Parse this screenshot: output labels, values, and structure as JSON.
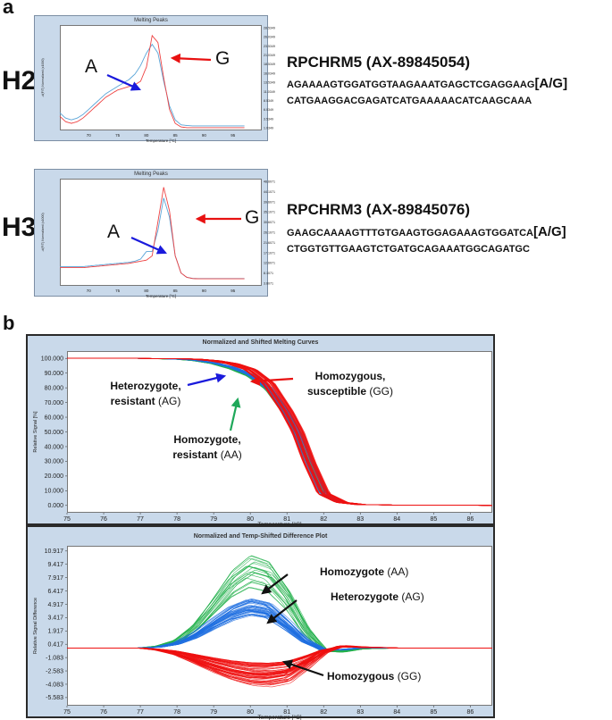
{
  "panels": {
    "a": "a",
    "b": "b"
  },
  "panel_a": {
    "H2": {
      "sample": "H2",
      "plot_title": "Melting Peaks",
      "xlabel": "Temperature [°C]",
      "ylabel": "-d(F/T) Normalized (x1000)",
      "x_ticks": [
        "70",
        "75",
        "80",
        "85",
        "90",
        "95"
      ],
      "y_ticks": [
        "28.5349",
        "26.0349",
        "23.5349",
        "21.0349",
        "18.5349",
        "16.0349",
        "13.5349",
        "11.0349",
        "8.5349",
        "6.0349",
        "3.5349",
        "1.0349"
      ],
      "snp_id": "RPCHRM5 (AX-89845054)",
      "seq_line1": "AGAAAAGTGGATGGTAAGAAATGAGCTCGAGGAAG",
      "allele": "[A/G]",
      "seq_line2": "CATGAAGGACGAGATCATGAAAAACATCAAGCAAA",
      "label_A": "A",
      "label_G": "G"
    },
    "H3": {
      "sample": "H3",
      "plot_title": "Melting Peaks",
      "xlabel": "Temperature [°C]",
      "ylabel": "-d(F/T) Normalized (x1000)",
      "x_ticks": [
        "70",
        "75",
        "80",
        "85",
        "90",
        "95"
      ],
      "y_ticks": [
        "48.6071",
        "44.1071",
        "39.6071",
        "35.1071",
        "30.6071",
        "26.1071",
        "21.6071",
        "17.1071",
        "12.6071",
        "8.1071",
        "3.6071"
      ],
      "snp_id": "RPCHRM3 (AX-89845076)",
      "seq_line1": "GAAGCAAAAGTTTGTGAAGTGGAGAAAGTGGATCA",
      "allele": "[A/G]",
      "seq_line2": "CTGGTGTTGAAGTCTGATGCAGAAATGGCAGATGC",
      "label_A": "A",
      "label_G": "G"
    }
  },
  "panel_b": {
    "top": {
      "title": "Normalized and Shifted Melting Curves",
      "xlabel": "Temperature [°C]",
      "ylabel": "Relative Signal [%]",
      "ann_het_1": "Heterozygote,",
      "ann_het_2": "resistant",
      "ann_het_g": "(AG)",
      "ann_homr_1": "Homozygote,",
      "ann_homr_2": "resistant",
      "ann_homr_g": "(AA)",
      "ann_homs_1": "Homozygous,",
      "ann_homs_2": "susceptible",
      "ann_homs_g": "(GG)"
    },
    "bottom": {
      "title": "Normalized and Temp-Shifted Difference Plot",
      "xlabel": "Temperature [°C]",
      "ylabel": "Relative Signal Difference",
      "ann_aa": "Homozygote",
      "ann_aa_g": "(AA)",
      "ann_ag": "Heterozygote",
      "ann_ag_g": "(AG)",
      "ann_gg": "Homozygous",
      "ann_gg_g": "(GG)"
    }
  },
  "colors": {
    "AA": "#22b04b",
    "AG": "#1e6fe0",
    "GG": "#ee1111",
    "arrow_A": "#1a1adc",
    "arrow_G": "#e81111",
    "arrow_green": "#1fa85a",
    "arrow_black": "#111111"
  },
  "chart_data": [
    {
      "type": "line",
      "title": "Melting Peaks",
      "xlabel": "Temperature [°C]",
      "ylabel": "-d(F/T) Normalized (x1000)",
      "xlim": [
        65,
        100
      ],
      "ylim": [
        0,
        30
      ],
      "x_ticks": [
        70,
        75,
        80,
        85,
        90,
        95
      ],
      "series": [
        {
          "name": "A",
          "color": "#5aa5d8",
          "x": [
            65,
            66,
            67,
            68,
            69,
            70,
            71,
            72,
            73,
            74,
            75,
            76,
            77,
            78,
            79,
            80,
            81,
            82,
            83,
            84,
            85,
            86,
            87,
            88,
            89,
            90,
            91,
            92,
            93,
            94,
            95,
            96,
            97
          ],
          "values": [
            5,
            3.5,
            3.0,
            3.5,
            4.5,
            6,
            7.5,
            9,
            10.5,
            11.5,
            12.5,
            13.5,
            14.5,
            16,
            18.5,
            22,
            24.5,
            22,
            14,
            7,
            3,
            1.6,
            1.4,
            1.3,
            1.3,
            1.3,
            1.3,
            1.3,
            1.3,
            1.3,
            1.3,
            1.3,
            1.3
          ]
        },
        {
          "name": "G",
          "color": "#ee4444",
          "x": [
            65,
            66,
            67,
            68,
            69,
            70,
            71,
            72,
            73,
            74,
            75,
            76,
            77,
            78,
            79,
            80,
            81,
            82,
            83,
            84,
            85,
            86,
            87,
            88,
            89,
            90,
            91,
            92,
            93,
            94,
            95,
            96,
            97
          ],
          "values": [
            4,
            2.5,
            2.0,
            2.5,
            3.5,
            5,
            6.5,
            8,
            9.5,
            10.5,
            11.5,
            12,
            12.5,
            13,
            14,
            18,
            27,
            25,
            15,
            6,
            2,
            1.0,
            0.8,
            0.8,
            0.8,
            0.8,
            0.8,
            0.8,
            0.8,
            0.8,
            0.8,
            0.8,
            0.8
          ]
        }
      ]
    },
    {
      "type": "line",
      "title": "Melting Peaks",
      "xlabel": "Temperature [°C]",
      "ylabel": "-d(F/T) Normalized (x1000)",
      "xlim": [
        65,
        100
      ],
      "ylim": [
        0,
        50
      ],
      "x_ticks": [
        70,
        75,
        80,
        85,
        90,
        95
      ],
      "series": [
        {
          "name": "A",
          "color": "#5aa5d8",
          "x": [
            65,
            67,
            69,
            71,
            73,
            75,
            77,
            78,
            79,
            80,
            81,
            82,
            83,
            84,
            85,
            86,
            87,
            88,
            89,
            90,
            92,
            94,
            96,
            97
          ],
          "values": [
            9,
            9,
            9,
            9.5,
            10,
            10.5,
            11,
            11.5,
            12.5,
            16,
            16,
            26,
            41,
            32,
            14,
            6,
            4,
            3.5,
            3.4,
            3.4,
            3.4,
            3.4,
            3.4,
            3.4
          ]
        },
        {
          "name": "G",
          "color": "#ee4444",
          "x": [
            65,
            67,
            69,
            71,
            73,
            75,
            77,
            78,
            79,
            80,
            81,
            82,
            83,
            84,
            85,
            86,
            87,
            88,
            89,
            90,
            92,
            94,
            96,
            97
          ],
          "values": [
            8.5,
            8.5,
            8.5,
            9,
            9.5,
            10,
            10.5,
            11,
            11.5,
            12,
            14,
            30,
            46,
            35,
            14,
            6,
            4,
            3.4,
            3.3,
            3.3,
            3.3,
            3.3,
            3.3,
            3.3
          ]
        }
      ]
    },
    {
      "type": "line",
      "title": "Normalized and Shifted Melting Curves",
      "xlabel": "Temperature [°C]",
      "ylabel": "Relative Signal [%]",
      "xlim": [
        75,
        86.6
      ],
      "ylim": [
        -5,
        105
      ],
      "x_ticks": [
        75,
        76,
        77,
        78,
        79,
        80,
        81,
        82,
        83,
        84,
        85,
        86
      ],
      "y_ticks": [
        0,
        10,
        20,
        30,
        40,
        50,
        60,
        70,
        80,
        90,
        100
      ],
      "series": [
        {
          "name": "Homozygote, resistant (AA)",
          "color": "#22b04b",
          "x": [
            75,
            77,
            78,
            78.5,
            79,
            79.5,
            80,
            80.5,
            81,
            81.3,
            81.6,
            82,
            82.5,
            83,
            84,
            86.6
          ],
          "values": [
            100,
            100,
            99.5,
            98.5,
            96.5,
            93,
            88,
            79,
            62,
            49,
            30,
            8,
            2,
            0.6,
            0.2,
            0
          ]
        },
        {
          "name": "Heterozygote, resistant (AG)",
          "color": "#1e6fe0",
          "x": [
            75,
            77,
            78,
            78.5,
            79,
            79.5,
            80,
            80.5,
            81,
            81.3,
            81.6,
            82,
            82.5,
            83,
            84,
            86.6
          ],
          "values": [
            100,
            100,
            99.6,
            98.8,
            97,
            94,
            89,
            80,
            63,
            49,
            30,
            8,
            2,
            0.6,
            0.2,
            0
          ]
        },
        {
          "name": "Homozygous, susceptible (GG)",
          "color": "#ee1111",
          "x": [
            75,
            77,
            78,
            78.5,
            79,
            79.5,
            80,
            80.5,
            81,
            81.3,
            81.6,
            82,
            82.5,
            83,
            84,
            86.6
          ],
          "values": [
            100,
            100,
            99.9,
            99.5,
            98.5,
            96.5,
            92.5,
            83,
            64,
            50,
            30,
            8,
            2,
            0.6,
            0.2,
            0
          ]
        }
      ]
    },
    {
      "type": "line",
      "title": "Normalized and Temp-Shifted Difference Plot",
      "xlabel": "Temperature [°C]",
      "ylabel": "Relative Signal Difference",
      "xlim": [
        75,
        86.6
      ],
      "ylim": [
        -6.5,
        11.5
      ],
      "x_ticks": [
        75,
        76,
        77,
        78,
        79,
        80,
        81,
        82,
        83,
        84,
        85,
        86
      ],
      "y_ticks": [
        10.917,
        9.417,
        7.917,
        6.417,
        4.917,
        3.417,
        1.917,
        0.417,
        -1.083,
        -2.583,
        -4.083,
        -5.583
      ],
      "series": [
        {
          "name": "Homozygote (AA)",
          "color": "#22b04b",
          "x": [
            75,
            77,
            77.5,
            78,
            78.5,
            79,
            79.5,
            80,
            80.5,
            81,
            81.5,
            82,
            82.5,
            83,
            84,
            86.6
          ],
          "values": [
            0,
            0,
            0.2,
            0.8,
            2.3,
            4.7,
            7.2,
            8.6,
            8.0,
            5.5,
            2.0,
            -0.3,
            -0.4,
            -0.1,
            0,
            0
          ]
        },
        {
          "name": "Heterozygote (AG)",
          "color": "#1e6fe0",
          "x": [
            75,
            77,
            77.5,
            78,
            78.5,
            79,
            79.5,
            80,
            80.5,
            81,
            81.5,
            82,
            82.5,
            83,
            84,
            86.6
          ],
          "values": [
            0,
            0,
            0.1,
            0.5,
            1.4,
            2.7,
            3.9,
            4.6,
            4.2,
            2.6,
            0.8,
            -0.2,
            -0.2,
            0,
            0,
            0
          ]
        },
        {
          "name": "Homozygous (GG)",
          "color": "#ee1111",
          "x": [
            75,
            77,
            77.5,
            78,
            78.5,
            79,
            79.5,
            80,
            80.5,
            81,
            81.5,
            82,
            82.5,
            83,
            84,
            86.6
          ],
          "values": [
            0,
            0,
            -0.2,
            -0.6,
            -1.3,
            -2.0,
            -2.6,
            -3.0,
            -3.1,
            -2.8,
            -1.7,
            -0.4,
            0.2,
            0.1,
            0,
            0
          ]
        }
      ]
    }
  ]
}
